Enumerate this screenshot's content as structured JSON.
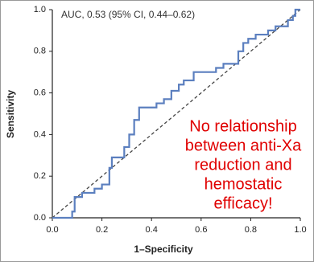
{
  "chart_data": {
    "type": "line",
    "annotation": "AUC, 0.53 (95% CI, 0.44–0.62)",
    "callout": [
      "No relationship",
      "between anti-Xa",
      "reduction and",
      "hemostatic",
      "efficacy!"
    ],
    "xlabel": "1–Specificity",
    "ylabel": "Sensitivity",
    "x": [
      0,
      0.08,
      0.08,
      0.09,
      0.09,
      0.12,
      0.12,
      0.17,
      0.17,
      0.2,
      0.2,
      0.23,
      0.23,
      0.24,
      0.24,
      0.29,
      0.29,
      0.31,
      0.31,
      0.33,
      0.33,
      0.35,
      0.35,
      0.42,
      0.42,
      0.45,
      0.45,
      0.48,
      0.48,
      0.51,
      0.51,
      0.53,
      0.53,
      0.57,
      0.57,
      0.66,
      0.66,
      0.69,
      0.69,
      0.75,
      0.75,
      0.77,
      0.77,
      0.79,
      0.79,
      0.82,
      0.82,
      0.87,
      0.87,
      0.9,
      0.9,
      0.95,
      0.95,
      0.97,
      0.97,
      0.98,
      0.98,
      1.0
    ],
    "series": [
      {
        "color": "#5b7fbf",
        "values": [
          0,
          0,
          0.03,
          0.03,
          0.1,
          0.1,
          0.12,
          0.12,
          0.14,
          0.14,
          0.16,
          0.16,
          0.24,
          0.24,
          0.29,
          0.29,
          0.34,
          0.34,
          0.4,
          0.4,
          0.47,
          0.47,
          0.53,
          0.53,
          0.55,
          0.55,
          0.57,
          0.57,
          0.61,
          0.61,
          0.64,
          0.64,
          0.66,
          0.66,
          0.7,
          0.7,
          0.72,
          0.72,
          0.74,
          0.74,
          0.8,
          0.8,
          0.84,
          0.84,
          0.86,
          0.86,
          0.88,
          0.88,
          0.9,
          0.9,
          0.92,
          0.92,
          0.95,
          0.95,
          0.97,
          0.97,
          1.0,
          1.0
        ]
      }
    ],
    "xlim": [
      0,
      1
    ],
    "ylim": [
      0,
      1
    ],
    "xticks": [
      {
        "value": 0,
        "label": "0.0"
      },
      0.2,
      0.4,
      0.6,
      0.8,
      {
        "value": 1,
        "label": "1.0"
      }
    ],
    "yticks": [
      {
        "value": 0,
        "label": "0.0"
      },
      0.2,
      0.4,
      0.6,
      0.8,
      {
        "value": 1,
        "label": "1.0"
      }
    ],
    "callout_color": "#e00000"
  }
}
